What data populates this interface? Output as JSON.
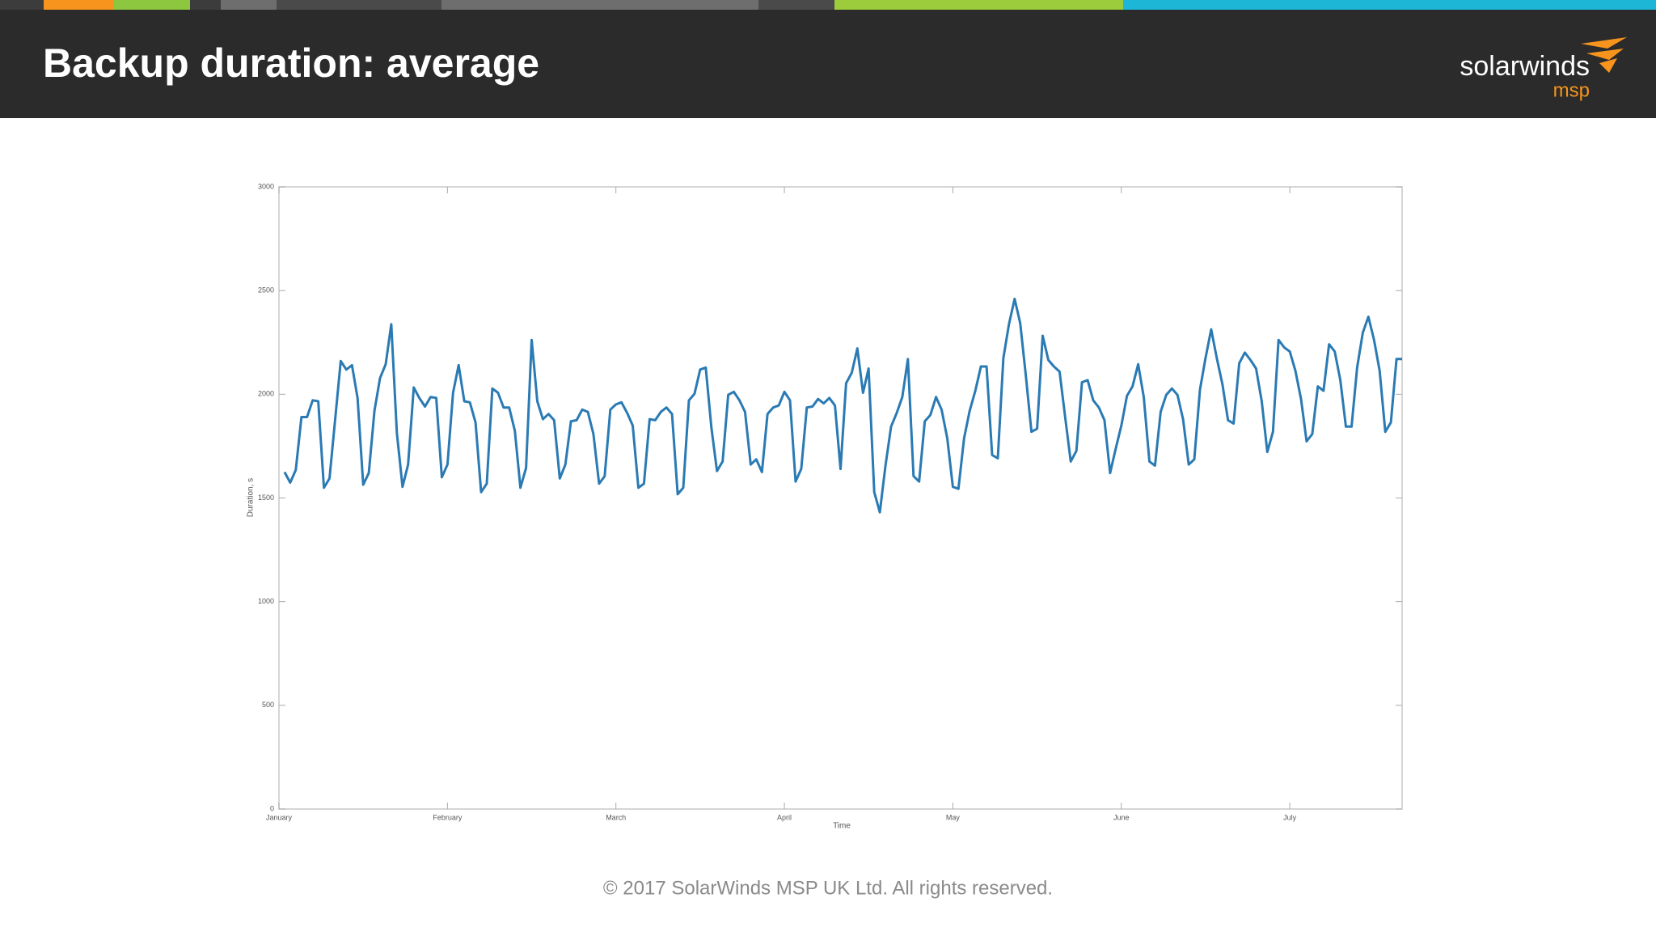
{
  "header": {
    "title": "Backup duration: average",
    "logo": "solarwinds",
    "logo_sub": "msp"
  },
  "chart_data": {
    "type": "line",
    "xlabel": "Time",
    "ylabel": "Duration, s",
    "xlim": [
      0,
      200
    ],
    "ylim": [
      0,
      3000
    ],
    "xticks": [
      {
        "value": 0,
        "label": "January"
      },
      {
        "value": 30,
        "label": "February"
      },
      {
        "value": 60,
        "label": "March"
      },
      {
        "value": 90,
        "label": "April"
      },
      {
        "value": 120,
        "label": "May"
      },
      {
        "value": 150,
        "label": "June"
      },
      {
        "value": 180,
        "label": "July"
      }
    ],
    "yticks": [
      0,
      500,
      1000,
      1500,
      2000,
      2500,
      3000
    ],
    "grid": false,
    "x": [
      1,
      2,
      3,
      4,
      5,
      6,
      7,
      8,
      9,
      11,
      12,
      13,
      14,
      15,
      16,
      17,
      18,
      19,
      20,
      21,
      22,
      23,
      24,
      25,
      26,
      27,
      28,
      29,
      30,
      31,
      32,
      33,
      34,
      35,
      36,
      37,
      38,
      39,
      40,
      41,
      42,
      43,
      44,
      45,
      46,
      47,
      48,
      49,
      50,
      51,
      52,
      53,
      54,
      55,
      56,
      57,
      58,
      59,
      60,
      61,
      62,
      63,
      64,
      65,
      66,
      67,
      68,
      69,
      70,
      71,
      72,
      73,
      74,
      75,
      76,
      77,
      78,
      79,
      80,
      81,
      82,
      83,
      84,
      85,
      86,
      87,
      88,
      89,
      90,
      91,
      92,
      93,
      94,
      95,
      96,
      97,
      98,
      99,
      100,
      101,
      102,
      103,
      104,
      105,
      106,
      107,
      108,
      109,
      110,
      111,
      112,
      113,
      114,
      115,
      116,
      117,
      118,
      119,
      120,
      121,
      122,
      123,
      124,
      125,
      126,
      127,
      128,
      129,
      130,
      131,
      132,
      133,
      134,
      135,
      136,
      137,
      138,
      139,
      140,
      141,
      142,
      143,
      144,
      145,
      146,
      147,
      148,
      149,
      150,
      151,
      152,
      153,
      154,
      155,
      156,
      157,
      158,
      159,
      160,
      161,
      162,
      163,
      164,
      165,
      166,
      167,
      168,
      169,
      170,
      171,
      172,
      173,
      174,
      175,
      176,
      177,
      178,
      179,
      180,
      181,
      182,
      183,
      184,
      185,
      186,
      187,
      188,
      189,
      190,
      191,
      192,
      193,
      194,
      195,
      196,
      197,
      198,
      199,
      200
    ],
    "series": [
      {
        "color": "#2a7ab4",
        "values": [
          1625,
          1574,
          1635,
          1890,
          1890,
          1971,
          1966,
          1549,
          1594,
          2160,
          2119,
          2140,
          1982,
          1564,
          1620,
          1920,
          2078,
          2145,
          2338,
          1814,
          1554,
          1661,
          2033,
          1982,
          1941,
          1987,
          1982,
          1600,
          1661,
          2007,
          2140,
          1966,
          1961,
          1864,
          1528,
          1569,
          2028,
          2007,
          1936,
          1936,
          1824,
          1549,
          1645,
          2262,
          1966,
          1880,
          1905,
          1875,
          1594,
          1661,
          1870,
          1875,
          1926,
          1915,
          1808,
          1569,
          1605,
          1926,
          1951,
          1961,
          1910,
          1849,
          1549,
          1569,
          1880,
          1875,
          1915,
          1936,
          1905,
          1518,
          1549,
          1971,
          2002,
          2119,
          2129,
          1839,
          1630,
          1676,
          1997,
          2012,
          1971,
          1915,
          1661,
          1686,
          1625,
          1905,
          1936,
          1946,
          2012,
          1971,
          1579,
          1640,
          1936,
          1941,
          1977,
          1956,
          1982,
          1946,
          1640,
          2053,
          2104,
          2221,
          2007,
          2124,
          1528,
          1431,
          1656,
          1844,
          1910,
          1987,
          2170,
          1605,
          1579,
          1870,
          1900,
          1987,
          1926,
          1788,
          1554,
          1544,
          1788,
          1920,
          2017,
          2134,
          2134,
          1707,
          1691,
          2175,
          2338,
          2460,
          2343,
          2089,
          1819,
          1834,
          2282,
          2165,
          2134,
          2109,
          1890,
          1676,
          1727,
          2058,
          2068,
          1971,
          1936,
          1875,
          1620,
          1737,
          1849,
          1992,
          2038,
          2145,
          1987,
          1676,
          1656,
          1915,
          1997,
          2028,
          1997,
          1880,
          1661,
          1686,
          2022,
          2175,
          2313,
          2175,
          2048,
          1875,
          1859,
          2150,
          2201,
          2165,
          2124,
          1966,
          1722,
          1819,
          2262,
          2226,
          2206,
          2114,
          1977,
          1773,
          1808,
          2038,
          2017,
          2241,
          2206,
          2068,
          1844,
          1844,
          2129,
          2297,
          2374,
          2262,
          2114,
          1819,
          1864,
          2170,
          2170
        ]
      }
    ]
  },
  "footer": "© 2017 SolarWinds MSP UK Ltd.  All rights reserved."
}
